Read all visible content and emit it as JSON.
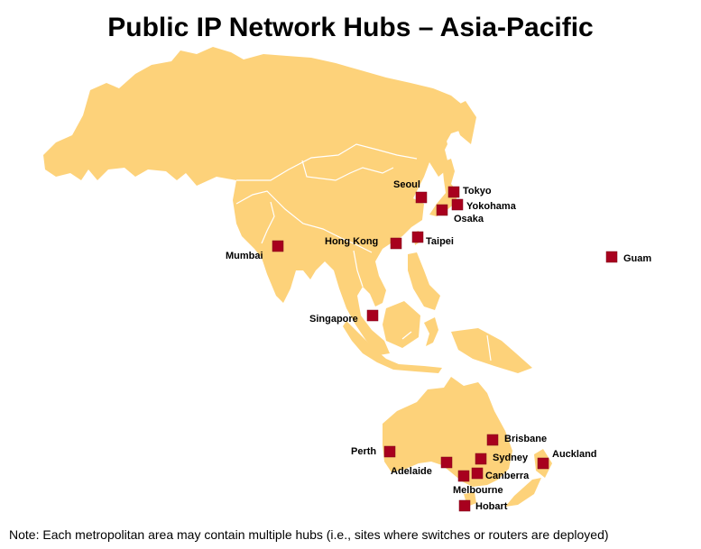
{
  "title": "Public IP Network Hubs – Asia-Pacific",
  "note": "Note: Each metropolitan area may contain multiple hubs (i.e., sites where switches or routers are deployed)",
  "colors": {
    "land": "#FDD27A",
    "hub": "#A8001E",
    "border": "#FFFFFF"
  },
  "marker_icon": "red-square-icon",
  "hubs": [
    {
      "name": "Seoul"
    },
    {
      "name": "Tokyo"
    },
    {
      "name": "Yokohama"
    },
    {
      "name": "Osaka"
    },
    {
      "name": "Hong Kong"
    },
    {
      "name": "Taipei"
    },
    {
      "name": "Mumbai"
    },
    {
      "name": "Guam"
    },
    {
      "name": "Singapore"
    },
    {
      "name": "Brisbane"
    },
    {
      "name": "Perth"
    },
    {
      "name": "Sydney"
    },
    {
      "name": "Auckland"
    },
    {
      "name": "Adelaide"
    },
    {
      "name": "Canberra"
    },
    {
      "name": "Melbourne"
    },
    {
      "name": "Hobart"
    }
  ]
}
